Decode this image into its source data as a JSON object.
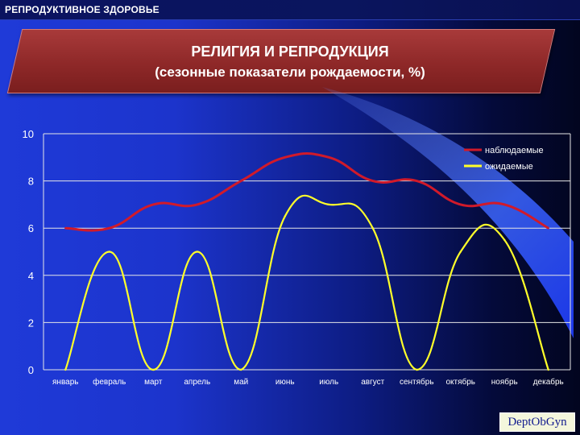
{
  "header": {
    "section": "РЕПРОДУКТИВНОЕ ЗДОРОВЬЕ"
  },
  "title": {
    "main": "РЕЛИГИЯ И РЕПРОДУКЦИЯ",
    "sub": "(сезонные показатели рождаемости, %)"
  },
  "logo": "DeptObGyn",
  "colors": {
    "observed": "#d11a2a",
    "expected": "#ffff2a",
    "grid": "#e6e6e6",
    "text": "#ffffff"
  },
  "chart_data": {
    "type": "line",
    "categories": [
      "январь",
      "февраль",
      "март",
      "апрель",
      "май",
      "июнь",
      "июль",
      "август",
      "сентябрь",
      "октябрь",
      "ноябрь",
      "декабрь"
    ],
    "ylim": [
      0,
      10
    ],
    "yticks": [
      0,
      2,
      4,
      6,
      8,
      10
    ],
    "grid": true,
    "legend_position": "top-right",
    "series": [
      {
        "name": "наблюдаемые",
        "values": [
          6,
          6,
          7,
          7,
          8,
          9,
          9,
          8,
          8,
          7,
          7,
          6
        ]
      },
      {
        "name": "ожидаемые",
        "values": [
          0,
          5,
          0,
          5,
          0,
          6.5,
          7,
          6,
          0,
          5,
          5.5,
          0
        ]
      }
    ]
  }
}
